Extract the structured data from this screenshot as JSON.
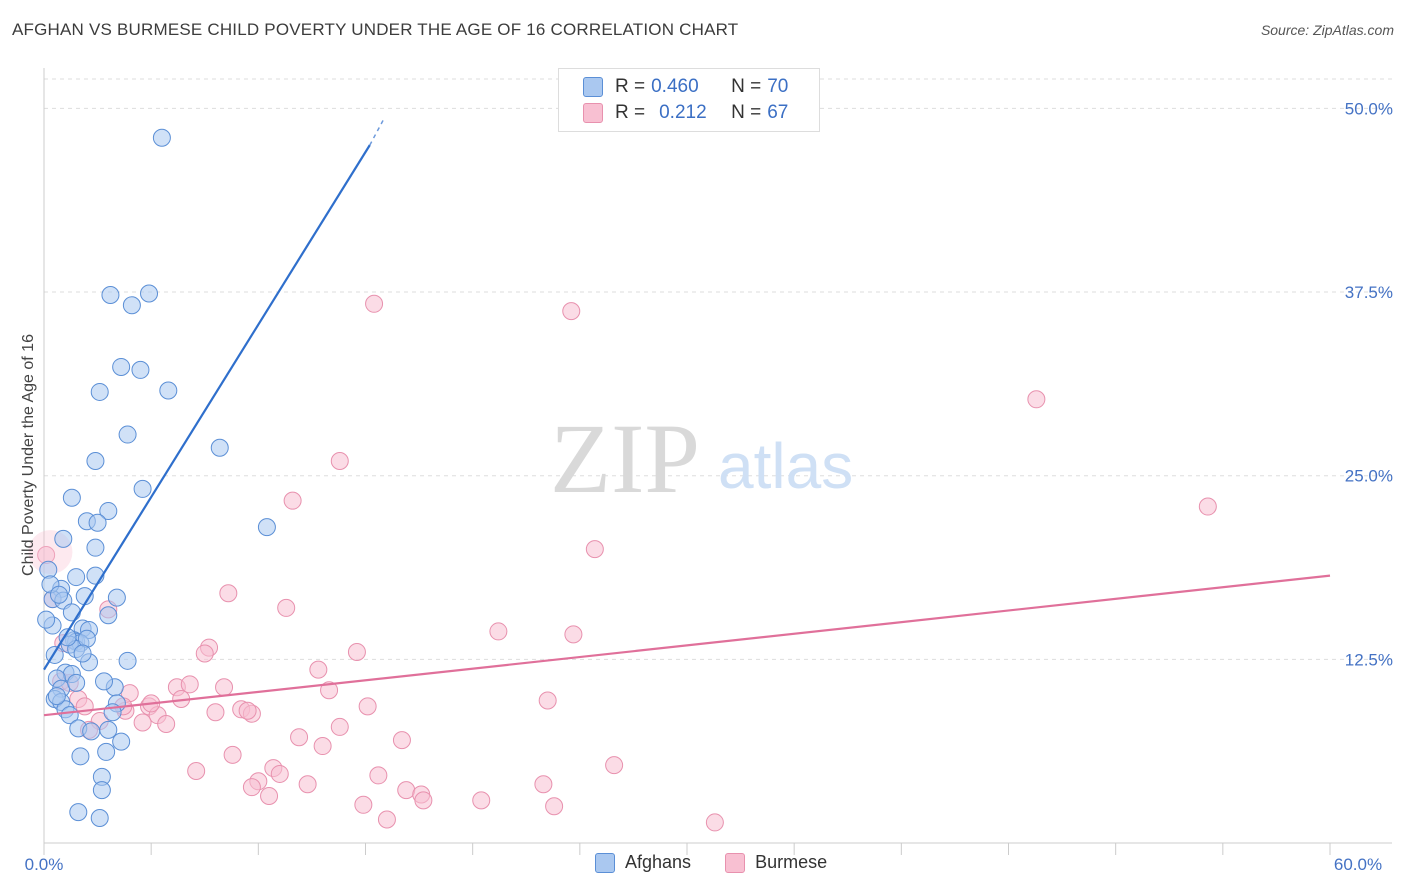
{
  "title": "AFGHAN VS BURMESE CHILD POVERTY UNDER THE AGE OF 16 CORRELATION CHART",
  "source": "Source: ZipAtlas.com",
  "watermark": {
    "zip": "ZIP",
    "atlas": "atlas"
  },
  "legend": {
    "afghans": {
      "r_label": "R = ",
      "r_value": "0.460",
      "n_label": "N = ",
      "n_value": "70"
    },
    "burmese": {
      "r_label": "R = ",
      "r_value": "0.212",
      "n_label": "N = ",
      "n_value": "67"
    }
  },
  "bottom_legend": {
    "afghans": "Afghans",
    "burmese": "Burmese"
  },
  "colors": {
    "afghans_fill": "#aac8f0",
    "afghans_stroke": "#5b8fd6",
    "afghans_line": "#2f6fcc",
    "burmese_fill": "#f8c0d2",
    "burmese_stroke": "#e891ae",
    "burmese_line": "#e0709a",
    "tick_text": "#4472c4"
  },
  "chart_data": {
    "type": "scatter",
    "title": "AFGHAN VS BURMESE CHILD POVERTY UNDER THE AGE OF 16 CORRELATION CHART",
    "xlabel": "",
    "ylabel": "Child Poverty Under the Age of 16",
    "xlim": [
      0,
      60
    ],
    "ylim": [
      0,
      52
    ],
    "x_tick_labels": [
      "0.0%",
      "60.0%"
    ],
    "y_ticks": [
      12.5,
      25.0,
      37.5,
      50.0
    ],
    "y_tick_labels": [
      "12.5%",
      "25.0%",
      "37.5%",
      "50.0%"
    ],
    "grid": true,
    "series": [
      {
        "name": "Afghans",
        "r": 0.46,
        "n": 70,
        "trend": {
          "x": [
            0,
            15.2
          ],
          "y": [
            11.8,
            47.5
          ],
          "dashed_to": [
            15.9,
            49.4
          ]
        },
        "points": [
          [
            5.5,
            48.0
          ],
          [
            3.1,
            37.3
          ],
          [
            4.9,
            37.4
          ],
          [
            4.1,
            36.6
          ],
          [
            3.6,
            32.4
          ],
          [
            4.5,
            32.2
          ],
          [
            2.6,
            30.7
          ],
          [
            5.8,
            30.8
          ],
          [
            3.9,
            27.8
          ],
          [
            8.2,
            26.9
          ],
          [
            2.4,
            26.0
          ],
          [
            4.6,
            24.1
          ],
          [
            1.3,
            23.5
          ],
          [
            3.0,
            22.6
          ],
          [
            10.4,
            21.5
          ],
          [
            2.0,
            21.9
          ],
          [
            2.5,
            21.8
          ],
          [
            0.9,
            20.7
          ],
          [
            2.4,
            20.1
          ],
          [
            0.2,
            18.6
          ],
          [
            1.5,
            18.1
          ],
          [
            2.4,
            18.2
          ],
          [
            0.8,
            17.3
          ],
          [
            1.9,
            16.8
          ],
          [
            3.4,
            16.7
          ],
          [
            0.4,
            16.6
          ],
          [
            0.9,
            16.5
          ],
          [
            1.3,
            15.7
          ],
          [
            3.0,
            15.5
          ],
          [
            0.4,
            14.8
          ],
          [
            1.8,
            14.6
          ],
          [
            2.1,
            14.5
          ],
          [
            1.4,
            13.8
          ],
          [
            1.5,
            13.7
          ],
          [
            1.7,
            13.6
          ],
          [
            1.2,
            13.5
          ],
          [
            1.5,
            13.2
          ],
          [
            0.5,
            12.8
          ],
          [
            2.1,
            12.3
          ],
          [
            3.9,
            12.4
          ],
          [
            1.0,
            11.6
          ],
          [
            1.3,
            11.5
          ],
          [
            0.6,
            11.2
          ],
          [
            0.8,
            10.5
          ],
          [
            3.3,
            10.6
          ],
          [
            0.5,
            9.8
          ],
          [
            0.8,
            9.6
          ],
          [
            3.4,
            9.5
          ],
          [
            1.0,
            9.1
          ],
          [
            1.2,
            8.7
          ],
          [
            3.2,
            8.9
          ],
          [
            1.6,
            7.8
          ],
          [
            2.2,
            7.6
          ],
          [
            3.0,
            7.7
          ],
          [
            3.6,
            6.9
          ],
          [
            1.7,
            5.9
          ],
          [
            2.9,
            6.2
          ],
          [
            2.7,
            4.5
          ],
          [
            2.7,
            3.6
          ],
          [
            1.6,
            2.1
          ],
          [
            2.6,
            1.7
          ],
          [
            0.1,
            15.2
          ],
          [
            0.3,
            17.6
          ],
          [
            0.6,
            10.0
          ],
          [
            1.1,
            14.0
          ],
          [
            2.0,
            13.9
          ],
          [
            0.7,
            16.9
          ],
          [
            1.8,
            12.9
          ],
          [
            2.8,
            11.0
          ],
          [
            1.5,
            10.9
          ]
        ]
      },
      {
        "name": "Burmese",
        "r": 0.212,
        "n": 67,
        "trend": {
          "x": [
            0,
            60
          ],
          "y": [
            8.7,
            18.2
          ]
        },
        "points": [
          [
            15.4,
            36.7
          ],
          [
            24.6,
            36.2
          ],
          [
            46.3,
            30.2
          ],
          [
            13.8,
            26.0
          ],
          [
            11.6,
            23.3
          ],
          [
            54.3,
            22.9
          ],
          [
            25.7,
            20.0
          ],
          [
            0.1,
            19.6
          ],
          [
            8.6,
            17.0
          ],
          [
            11.3,
            16.0
          ],
          [
            3.0,
            15.9
          ],
          [
            21.2,
            14.4
          ],
          [
            24.7,
            14.2
          ],
          [
            0.9,
            13.6
          ],
          [
            7.7,
            13.3
          ],
          [
            7.5,
            12.9
          ],
          [
            14.6,
            13.0
          ],
          [
            12.8,
            11.8
          ],
          [
            0.8,
            11.0
          ],
          [
            1.2,
            10.9
          ],
          [
            6.2,
            10.6
          ],
          [
            8.4,
            10.6
          ],
          [
            13.3,
            10.4
          ],
          [
            4.0,
            10.2
          ],
          [
            6.4,
            9.8
          ],
          [
            1.6,
            9.8
          ],
          [
            23.5,
            9.7
          ],
          [
            4.9,
            9.3
          ],
          [
            15.1,
            9.3
          ],
          [
            3.8,
            9.0
          ],
          [
            9.2,
            9.1
          ],
          [
            9.7,
            8.8
          ],
          [
            8.0,
            8.9
          ],
          [
            5.3,
            8.7
          ],
          [
            2.6,
            8.3
          ],
          [
            4.6,
            8.2
          ],
          [
            5.7,
            8.1
          ],
          [
            13.8,
            7.9
          ],
          [
            2.1,
            7.7
          ],
          [
            11.9,
            7.2
          ],
          [
            16.7,
            7.0
          ],
          [
            13.0,
            6.6
          ],
          [
            8.8,
            6.0
          ],
          [
            26.6,
            5.3
          ],
          [
            10.7,
            5.1
          ],
          [
            7.1,
            4.9
          ],
          [
            11.0,
            4.7
          ],
          [
            15.6,
            4.6
          ],
          [
            10.0,
            4.2
          ],
          [
            12.3,
            4.0
          ],
          [
            23.3,
            4.0
          ],
          [
            9.7,
            3.8
          ],
          [
            16.9,
            3.6
          ],
          [
            17.6,
            3.3
          ],
          [
            10.5,
            3.2
          ],
          [
            17.7,
            2.9
          ],
          [
            20.4,
            2.9
          ],
          [
            14.9,
            2.6
          ],
          [
            23.8,
            2.5
          ],
          [
            16.0,
            1.6
          ],
          [
            31.3,
            1.4
          ],
          [
            1.9,
            9.3
          ],
          [
            0.4,
            16.6
          ],
          [
            3.7,
            9.3
          ],
          [
            6.8,
            10.8
          ],
          [
            9.5,
            9.0
          ],
          [
            5.0,
            9.5
          ]
        ]
      }
    ]
  },
  "ylabel": "Child Poverty Under the Age of 16"
}
